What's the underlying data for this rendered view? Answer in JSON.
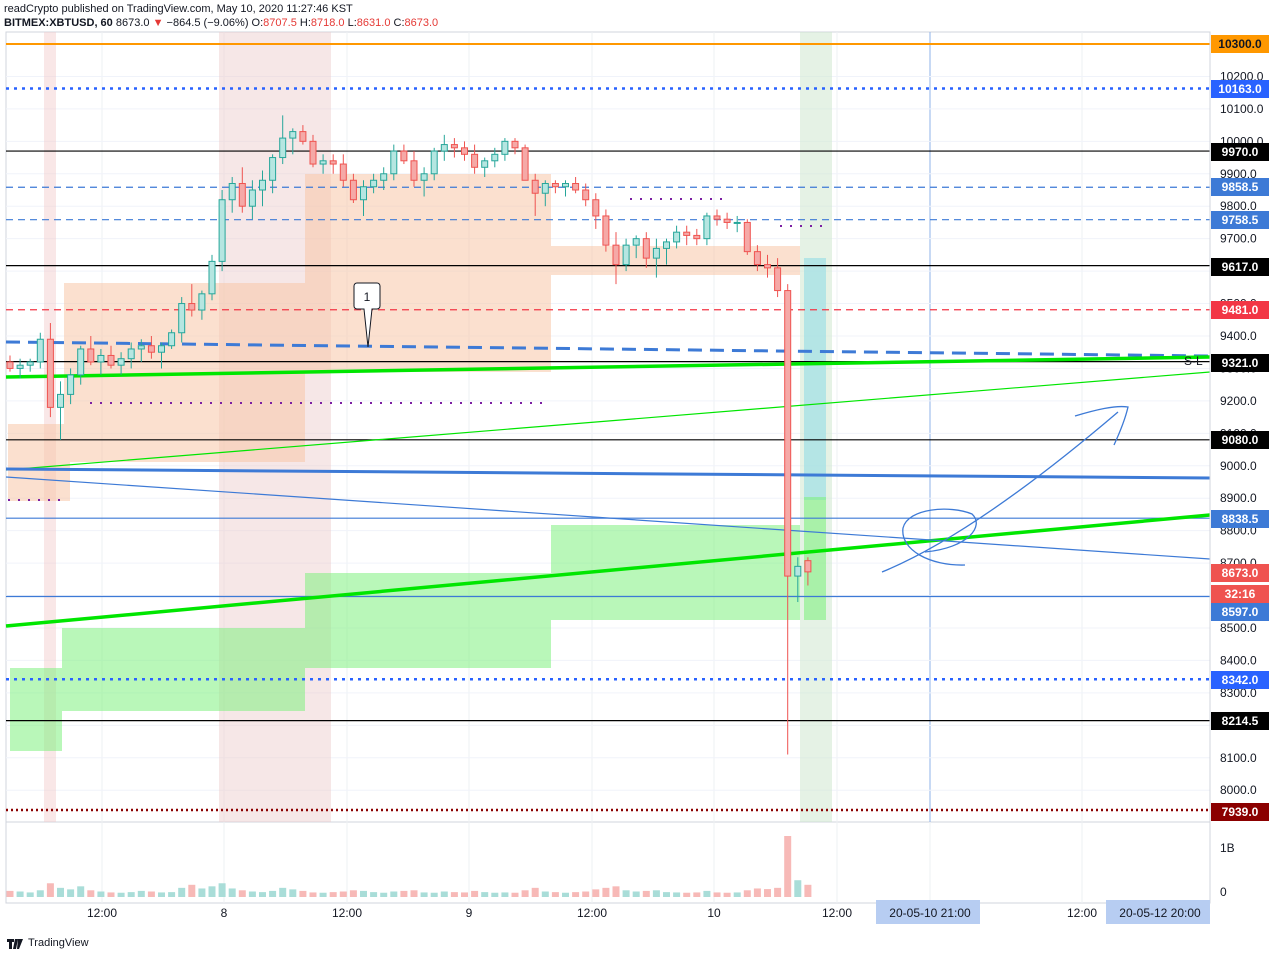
{
  "header": {
    "publisher": "readCrypto published on TradingView.com, May 10, 2020 11:27:46 KST",
    "symbol": "BITMEX:XBTUSD, 60",
    "last": "8673.0",
    "change": "−864.5 (−9.06%)",
    "open_label": "O:",
    "open": "8707.5",
    "high_label": "H:",
    "high": "8718.0",
    "low_label": "L:",
    "low": "8631.0",
    "close_label": "C:",
    "close": "8673.0"
  },
  "footer": {
    "brand": "TradingView"
  },
  "colors": {
    "up": "#26a69a",
    "down": "#ef5350",
    "orange": "#ff9800",
    "blue": "#2962ff",
    "lightblue": "#3d7ad6",
    "green": "#00e600",
    "red": "#f23645",
    "purple": "#7b1fa2"
  },
  "chart_data": {
    "type": "candlestick",
    "symbol": "BITMEX:XBTUSD",
    "interval": "60",
    "ylim": [
      7939,
      10300
    ],
    "y_ticks": [
      8000,
      8100,
      8200,
      8300,
      8400,
      8500,
      8600,
      8700,
      8800,
      8900,
      9000,
      9100,
      9200,
      9300,
      9400,
      9500,
      9600,
      9700,
      9800,
      9900,
      10000,
      10100,
      10200
    ],
    "x_ticks": [
      "12:00",
      "8",
      "12:00",
      "9",
      "12:00",
      "10",
      "12:00",
      "20-05-10  21:00",
      "12:00",
      "20-05-12  20:00"
    ],
    "price_labels": [
      {
        "value": "10300.0",
        "color": "#ff9800",
        "text_color": "#131722"
      },
      {
        "value": "10163.0",
        "color": "#2962ff",
        "text_color": "#ffffff"
      },
      {
        "value": "9970.0",
        "color": "#000000",
        "text_color": "#ffffff"
      },
      {
        "value": "9858.5",
        "color": "#3d7ad6",
        "text_color": "#ffffff"
      },
      {
        "value": "9758.5",
        "color": "#3d7ad6",
        "text_color": "#ffffff"
      },
      {
        "value": "9617.0",
        "color": "#000000",
        "text_color": "#ffffff"
      },
      {
        "value": "9481.0",
        "color": "#f23645",
        "text_color": "#ffffff"
      },
      {
        "value": "9321.0",
        "color": "#000000",
        "text_color": "#ffffff"
      },
      {
        "value": "9080.0",
        "color": "#000000",
        "text_color": "#ffffff"
      },
      {
        "value": "8838.5",
        "color": "#3d7ad6",
        "text_color": "#ffffff"
      },
      {
        "value": "8673.0",
        "color": "#ef5350",
        "text_color": "#ffffff"
      },
      {
        "value": "32:16",
        "color": "#ef5350",
        "text_color": "#ffffff"
      },
      {
        "value": "8597.0",
        "color": "#3d7ad6",
        "text_color": "#ffffff"
      },
      {
        "value": "8342.0",
        "color": "#2962ff",
        "text_color": "#ffffff"
      },
      {
        "value": "8214.5",
        "color": "#000000",
        "text_color": "#ffffff"
      },
      {
        "value": "7939.0",
        "color": "#8b0000",
        "text_color": "#ffffff"
      }
    ],
    "hlines": [
      {
        "value": 10300,
        "style": "solid",
        "color": "#ff9800"
      },
      {
        "value": 10163,
        "style": "dotted",
        "color": "#2962ff"
      },
      {
        "value": 9970,
        "style": "solid",
        "color": "#000000"
      },
      {
        "value": 9858.5,
        "style": "dashed",
        "color": "#3d7ad6"
      },
      {
        "value": 9758.5,
        "style": "dashed",
        "color": "#3d7ad6"
      },
      {
        "value": 9617,
        "style": "solid",
        "color": "#000000"
      },
      {
        "value": 9481,
        "style": "dashed",
        "color": "#f23645"
      },
      {
        "value": 9321,
        "style": "solid",
        "color": "#000000"
      },
      {
        "value": 9080,
        "style": "solid",
        "color": "#000000"
      },
      {
        "value": 8838.5,
        "style": "solid",
        "color": "#3d7ad6"
      },
      {
        "value": 8597,
        "style": "solid",
        "color": "#3d7ad6"
      },
      {
        "value": 8342,
        "style": "dotted",
        "color": "#2962ff"
      },
      {
        "value": 8214.5,
        "style": "solid",
        "color": "#000000"
      },
      {
        "value": 7939,
        "style": "dotted",
        "color": "#8b0000"
      }
    ],
    "candles": [
      [
        9320,
        9340,
        9290,
        9300
      ],
      [
        9300,
        9330,
        9270,
        9310
      ],
      [
        9310,
        9330,
        9290,
        9320
      ],
      [
        9320,
        9410,
        9300,
        9390
      ],
      [
        9390,
        9440,
        9150,
        9180
      ],
      [
        9180,
        9260,
        9080,
        9220
      ],
      [
        9220,
        9300,
        9190,
        9280
      ],
      [
        9280,
        9370,
        9250,
        9360
      ],
      [
        9360,
        9400,
        9310,
        9320
      ],
      [
        9320,
        9360,
        9280,
        9340
      ],
      [
        9340,
        9370,
        9300,
        9310
      ],
      [
        9310,
        9350,
        9280,
        9330
      ],
      [
        9330,
        9380,
        9300,
        9360
      ],
      [
        9360,
        9390,
        9320,
        9370
      ],
      [
        9370,
        9400,
        9330,
        9350
      ],
      [
        9350,
        9380,
        9300,
        9370
      ],
      [
        9370,
        9420,
        9360,
        9410
      ],
      [
        9410,
        9520,
        9380,
        9500
      ],
      [
        9500,
        9560,
        9460,
        9480
      ],
      [
        9480,
        9540,
        9450,
        9530
      ],
      [
        9530,
        9650,
        9510,
        9630
      ],
      [
        9630,
        9850,
        9600,
        9820
      ],
      [
        9820,
        9890,
        9780,
        9870
      ],
      [
        9870,
        9920,
        9780,
        9800
      ],
      [
        9800,
        9880,
        9760,
        9850
      ],
      [
        9850,
        9910,
        9800,
        9880
      ],
      [
        9880,
        9960,
        9840,
        9950
      ],
      [
        9950,
        10080,
        9930,
        10010
      ],
      [
        10010,
        10040,
        9960,
        10030
      ],
      [
        10030,
        10050,
        9990,
        10000
      ],
      [
        10000,
        10020,
        9920,
        9930
      ],
      [
        9930,
        9960,
        9900,
        9940
      ],
      [
        9940,
        9960,
        9900,
        9930
      ],
      [
        9930,
        9960,
        9860,
        9880
      ],
      [
        9880,
        9900,
        9810,
        9820
      ],
      [
        9820,
        9880,
        9770,
        9860
      ],
      [
        9860,
        9900,
        9840,
        9880
      ],
      [
        9880,
        9920,
        9850,
        9900
      ],
      [
        9900,
        9990,
        9880,
        9970
      ],
      [
        9970,
        9990,
        9930,
        9940
      ],
      [
        9940,
        9970,
        9860,
        9880
      ],
      [
        9880,
        9920,
        9830,
        9900
      ],
      [
        9900,
        9980,
        9880,
        9970
      ],
      [
        9970,
        10020,
        9940,
        9990
      ],
      [
        9990,
        10010,
        9950,
        9980
      ],
      [
        9980,
        10000,
        9940,
        9960
      ],
      [
        9960,
        9990,
        9900,
        9920
      ],
      [
        9920,
        9950,
        9890,
        9940
      ],
      [
        9940,
        9980,
        9920,
        9960
      ],
      [
        9960,
        10010,
        9940,
        10000
      ],
      [
        10000,
        10010,
        9960,
        9980
      ],
      [
        9980,
        9990,
        9880,
        9880
      ],
      [
        9880,
        9900,
        9770,
        9840
      ],
      [
        9840,
        9880,
        9800,
        9870
      ],
      [
        9870,
        9880,
        9840,
        9860
      ],
      [
        9860,
        9880,
        9830,
        9870
      ],
      [
        9870,
        9890,
        9840,
        9850
      ],
      [
        9850,
        9870,
        9800,
        9820
      ],
      [
        9820,
        9840,
        9730,
        9770
      ],
      [
        9770,
        9790,
        9660,
        9680
      ],
      [
        9680,
        9720,
        9560,
        9620
      ],
      [
        9620,
        9700,
        9600,
        9680
      ],
      [
        9680,
        9710,
        9640,
        9700
      ],
      [
        9700,
        9720,
        9610,
        9640
      ],
      [
        9640,
        9700,
        9580,
        9670
      ],
      [
        9670,
        9700,
        9620,
        9690
      ],
      [
        9690,
        9740,
        9670,
        9720
      ],
      [
        9720,
        9740,
        9680,
        9710
      ],
      [
        9710,
        9730,
        9680,
        9700
      ],
      [
        9700,
        9780,
        9680,
        9770
      ],
      [
        9770,
        9790,
        9740,
        9760
      ],
      [
        9760,
        9780,
        9730,
        9750
      ],
      [
        9750,
        9770,
        9720,
        9750
      ],
      [
        9750,
        9760,
        9650,
        9660
      ],
      [
        9660,
        9680,
        9600,
        9620
      ],
      [
        9620,
        9650,
        9580,
        9610
      ],
      [
        9610,
        9640,
        9520,
        9540
      ],
      [
        9540,
        9560,
        8110,
        8660
      ],
      [
        8660,
        8718,
        8580,
        8690
      ],
      [
        8707.5,
        8718,
        8631,
        8673
      ]
    ],
    "volume": [
      20,
      18,
      15,
      22,
      45,
      30,
      25,
      35,
      22,
      18,
      15,
      14,
      16,
      20,
      18,
      15,
      16,
      30,
      40,
      28,
      35,
      45,
      28,
      22,
      18,
      16,
      20,
      30,
      25,
      20,
      15,
      14,
      16,
      18,
      22,
      20,
      16,
      14,
      18,
      20,
      22,
      15,
      14,
      18,
      16,
      15,
      20,
      16,
      14,
      15,
      14,
      22,
      30,
      18,
      16,
      14,
      16,
      18,
      25,
      30,
      35,
      22,
      18,
      20,
      22,
      16,
      15,
      14,
      15,
      20,
      15,
      14,
      15,
      22,
      28,
      26,
      30,
      200,
      55,
      40
    ],
    "volume_axis": [
      "1B",
      "0"
    ],
    "annotations": [
      {
        "text": "1",
        "type": "callout"
      },
      {
        "text": "S-L",
        "type": "label"
      }
    ]
  }
}
